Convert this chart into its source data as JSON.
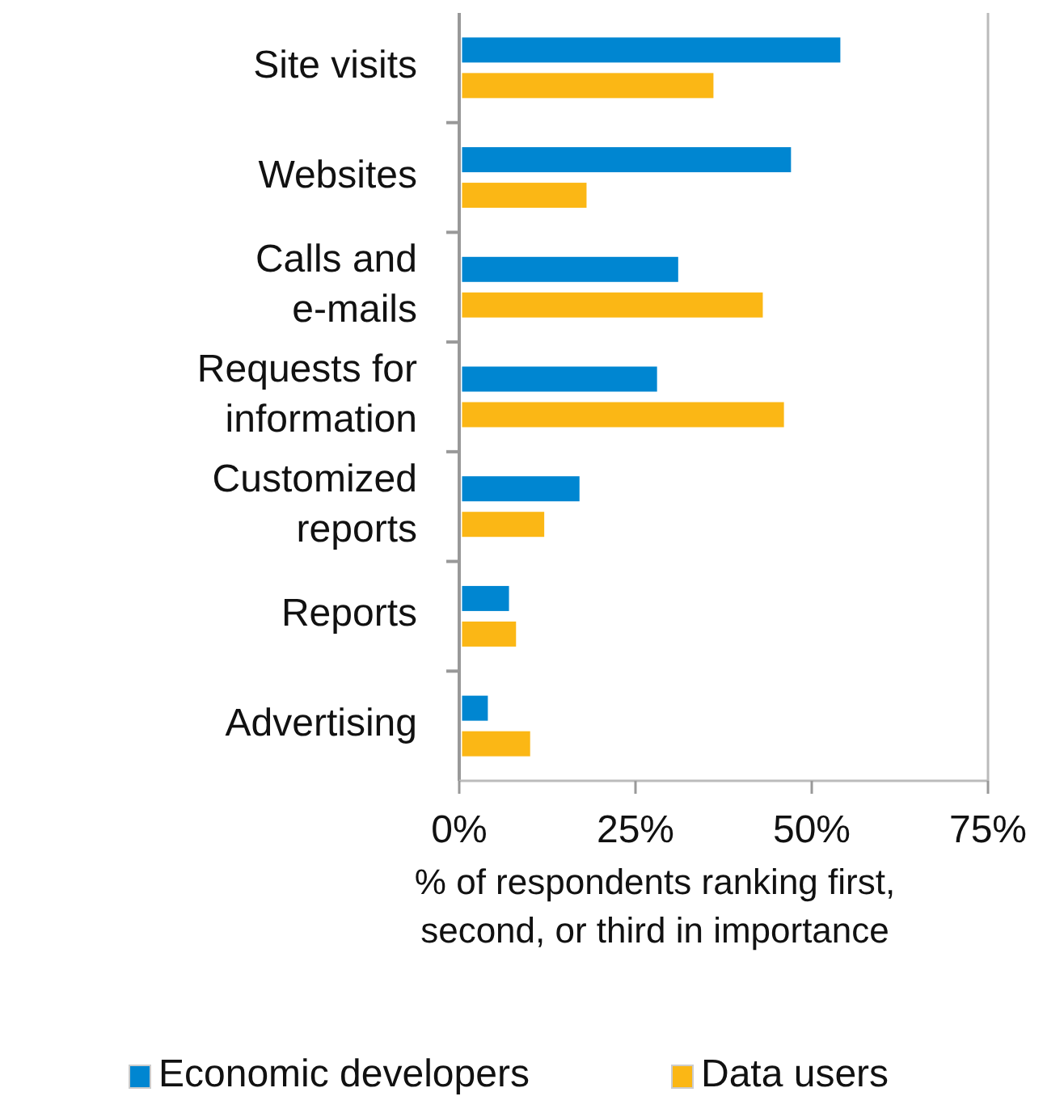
{
  "chart_data": {
    "type": "bar",
    "orientation": "horizontal",
    "categories": [
      "Site visits",
      "Websites",
      "Calls and e-mails",
      "Requests for information",
      "Customized reports",
      "Reports",
      "Advertising"
    ],
    "series": [
      {
        "name": "Economic developers",
        "color": "#0086d1",
        "values": [
          54,
          47,
          31,
          28,
          17,
          7,
          4
        ]
      },
      {
        "name": "Data users",
        "color": "#fbb715",
        "values": [
          36,
          18,
          43,
          46,
          12,
          8,
          10
        ]
      }
    ],
    "xlim": [
      0,
      75
    ],
    "xticks": [
      {
        "value": 0,
        "label": "0%"
      },
      {
        "value": 25,
        "label": "25%"
      },
      {
        "value": 50,
        "label": "50%"
      },
      {
        "value": 75,
        "label": "75%"
      }
    ],
    "xlabel": "% of respondents ranking first, second, or third in importance",
    "grid": false,
    "legend": "bottom"
  }
}
